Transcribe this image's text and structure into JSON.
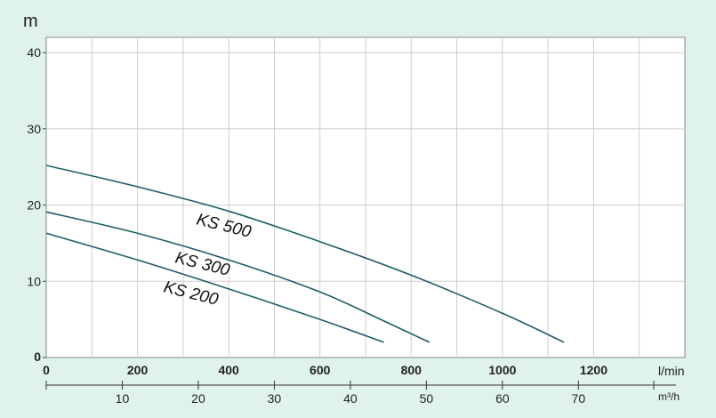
{
  "chart_data": {
    "type": "line",
    "ylabel": "m",
    "ylim": [
      0,
      42
    ],
    "y_ticks": [
      "0",
      "10",
      "20",
      "30",
      "40"
    ],
    "x_primary": {
      "unit": "l/min",
      "range": [
        0,
        1400
      ],
      "ticks": [
        "0",
        "200",
        "400",
        "600",
        "800",
        "1000",
        "1200"
      ]
    },
    "x_secondary": {
      "unit": "m³/h",
      "range": [
        0,
        84
      ],
      "ticks": [
        "10",
        "20",
        "30",
        "40",
        "50",
        "60",
        "70"
      ]
    },
    "grid": true,
    "series": [
      {
        "name": "KS 500",
        "x": [
          0,
          200,
          400,
          600,
          800,
          1000,
          1135
        ],
        "y": [
          25.2,
          22.4,
          19.2,
          15.2,
          10.8,
          5.8,
          2.0
        ],
        "color": "#1b5e68"
      },
      {
        "name": "KS 300",
        "x": [
          0,
          200,
          400,
          600,
          740,
          840
        ],
        "y": [
          19.1,
          16.3,
          12.8,
          8.6,
          4.8,
          2.0
        ],
        "color": "#1b5e68"
      },
      {
        "name": "KS 200",
        "x": [
          0,
          200,
          400,
          600,
          740
        ],
        "y": [
          16.3,
          12.8,
          9.0,
          5.0,
          2.0
        ],
        "color": "#1b5e68"
      }
    ]
  }
}
